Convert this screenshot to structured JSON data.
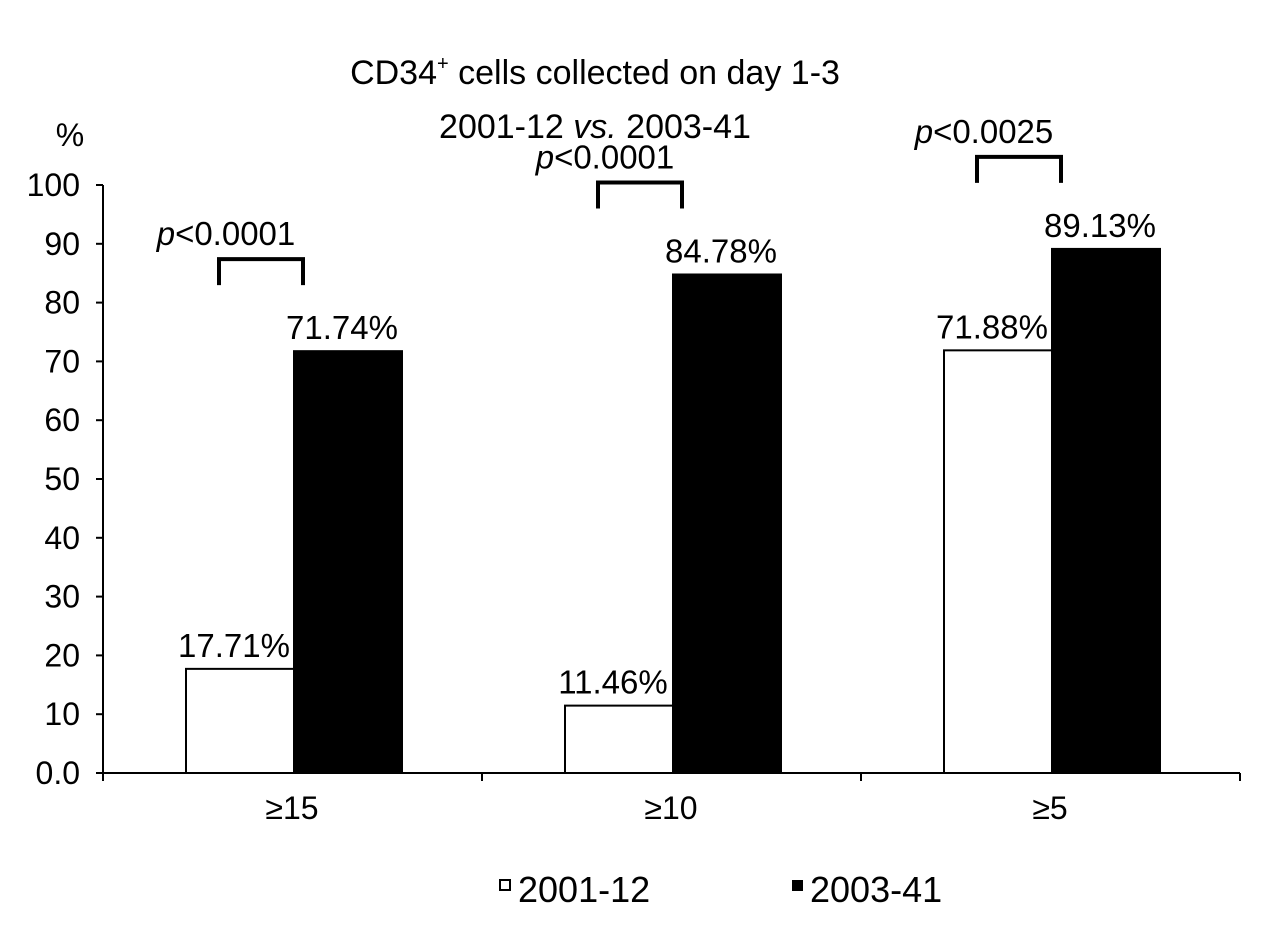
{
  "chart_data": {
    "type": "bar",
    "title_line1": "CD34",
    "title_sup": "+",
    "title_line1_rest": " cells collected on day 1-3",
    "title_line2_a": "2001-12 ",
    "title_line2_vs": "vs.",
    "title_line2_b": " 2003-41",
    "ylabel": "%",
    "ylim": [
      0,
      100
    ],
    "yticks": [
      "0.0",
      "10",
      "20",
      "30",
      "40",
      "50",
      "60",
      "70",
      "80",
      "90",
      "100"
    ],
    "categories": [
      "≥15",
      "≥10",
      "≥5"
    ],
    "series": [
      {
        "name": "2001-12",
        "values": [
          17.71,
          11.46,
          71.88
        ],
        "labels": [
          "17.71%",
          "11.46%",
          "71.88%"
        ],
        "color": "#ffffff"
      },
      {
        "name": "2003-41",
        "values": [
          71.74,
          84.78,
          89.13
        ],
        "labels": [
          "71.74%",
          "84.78%",
          "89.13%"
        ],
        "color": "#000000"
      }
    ],
    "pvalues": [
      {
        "p": "p",
        "rest": "<0.0001"
      },
      {
        "p": "p",
        "rest": "<0.0001"
      },
      {
        "p": "p",
        "rest": "<0.0025"
      }
    ],
    "legend_position": "bottom"
  }
}
